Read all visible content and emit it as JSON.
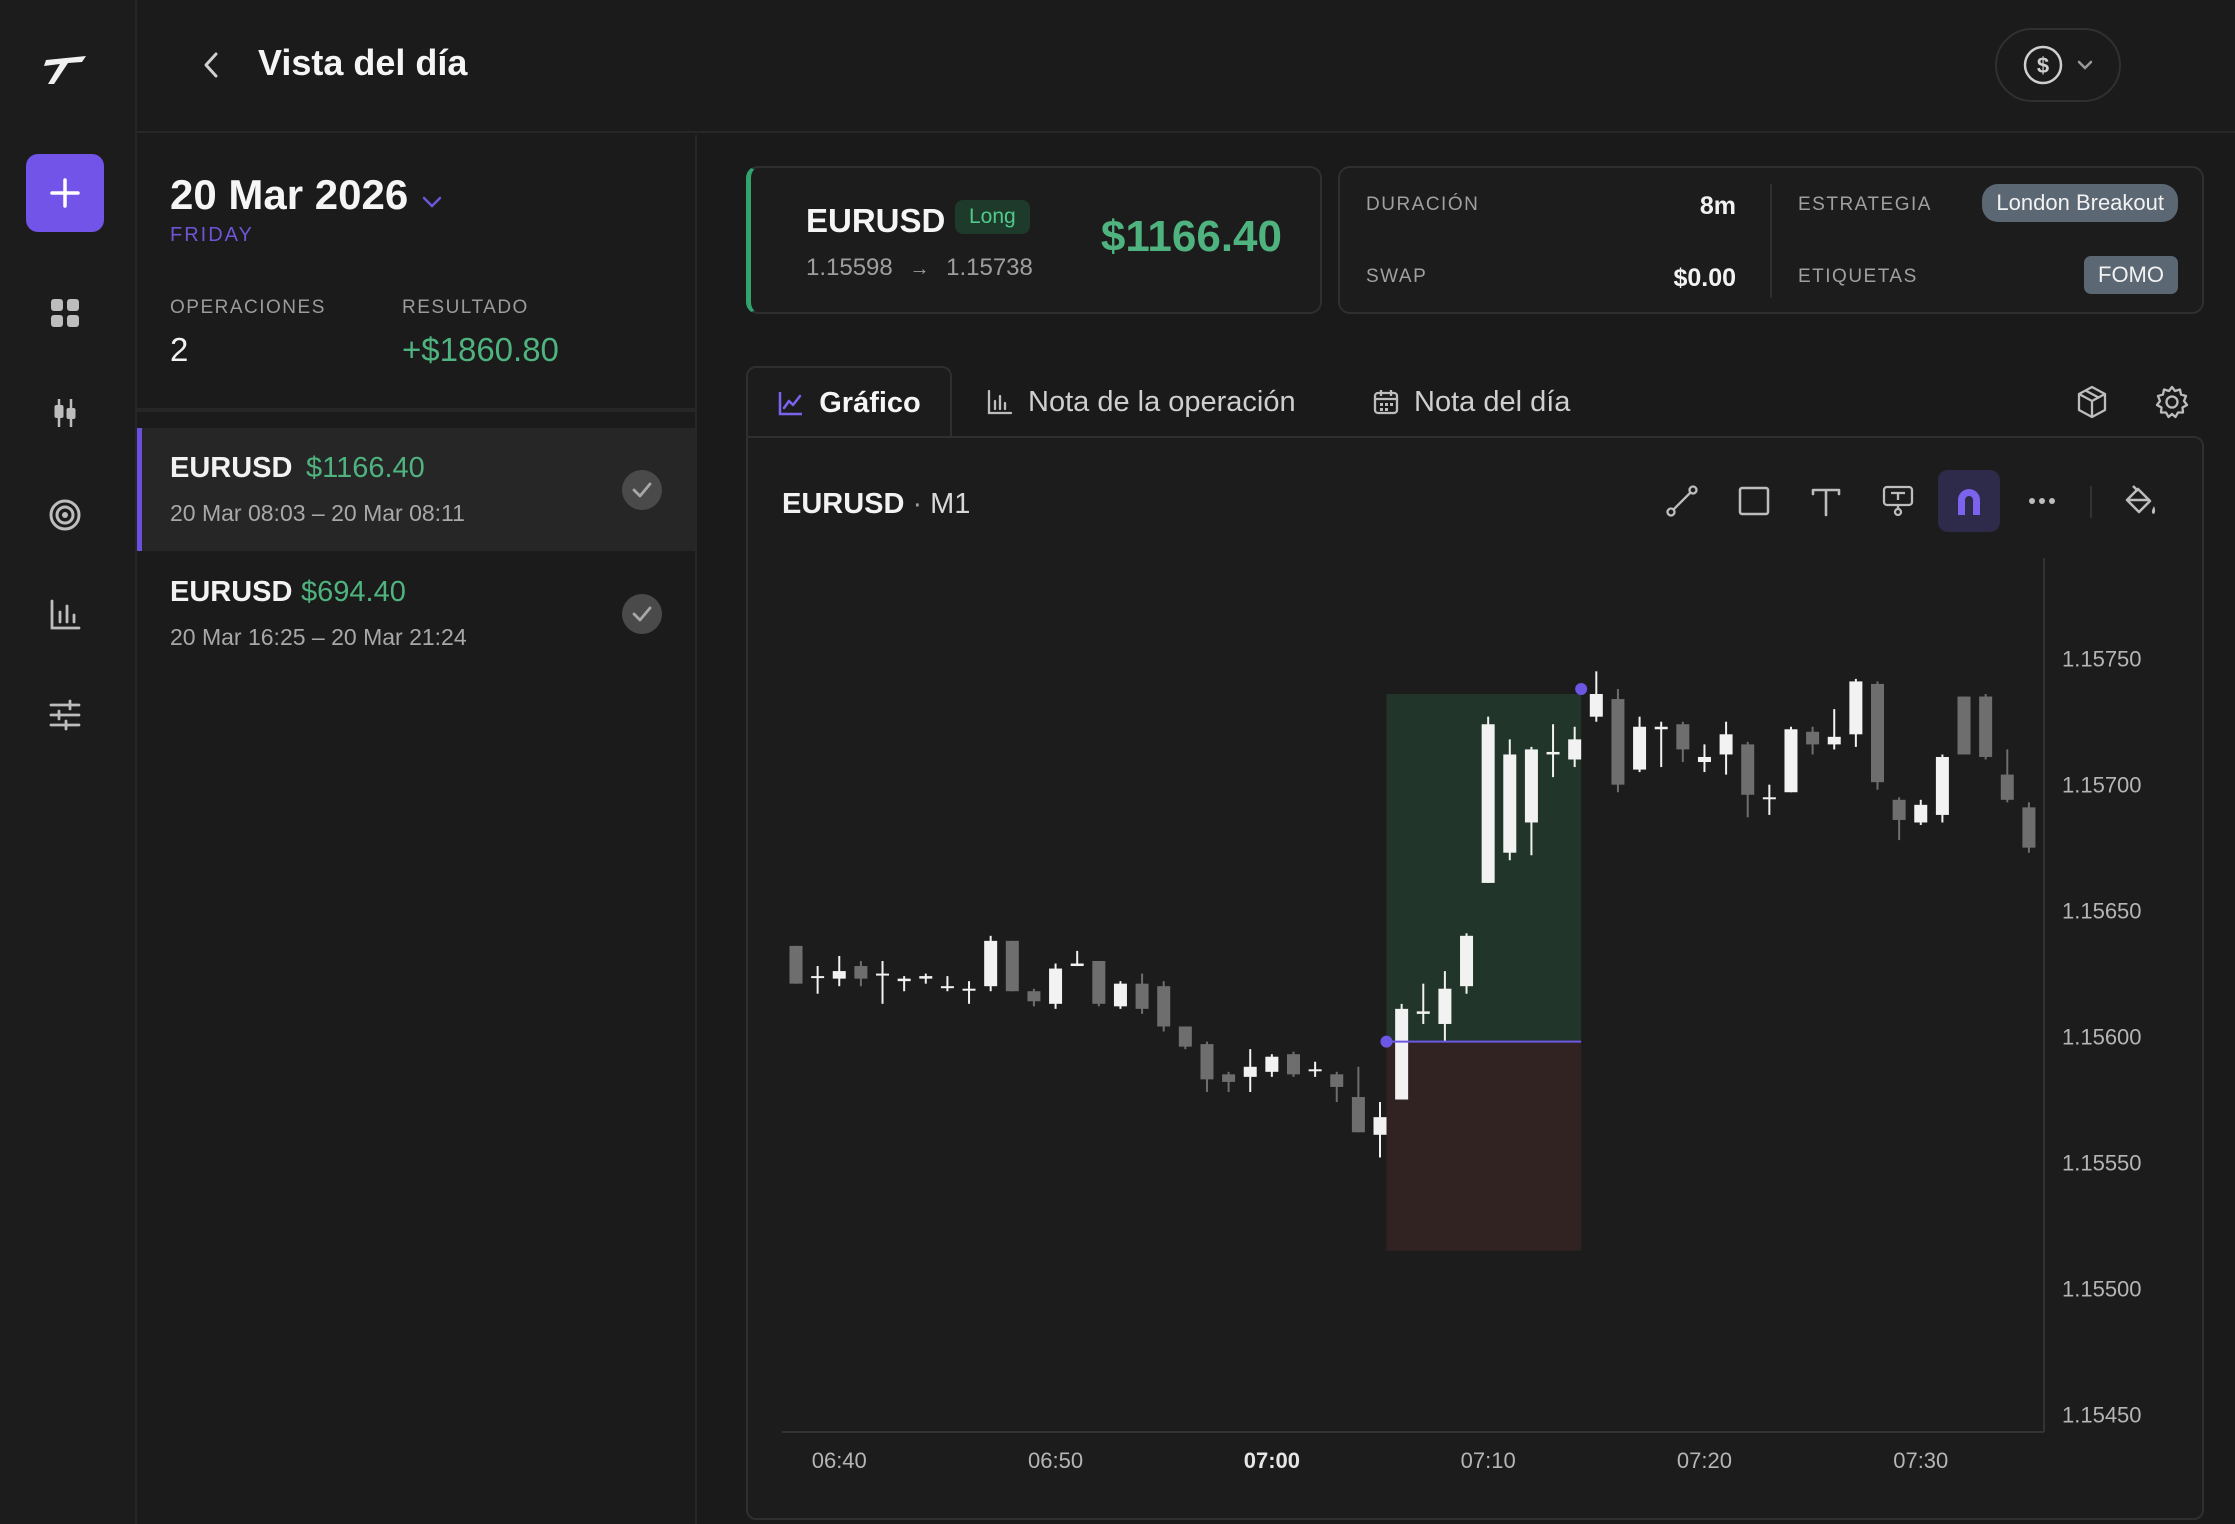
{
  "header": {
    "title": "Vista del día"
  },
  "rail": {
    "items": [
      "add-icon",
      "dashboard-icon",
      "candlestick-icon",
      "target-icon",
      "bar-chart-icon",
      "sliders-icon"
    ]
  },
  "day": {
    "date": "20 Mar 2026",
    "weekday": "FRIDAY",
    "operaciones_label": "OPERACIONES",
    "operaciones_value": "2",
    "resultado_label": "RESULTADO",
    "resultado_value": "+$1860.80"
  },
  "trades": [
    {
      "symbol": "EURUSD",
      "pnl": "$1166.40",
      "time": "20 Mar 08:03 – 20 Mar 08:11"
    },
    {
      "symbol": "EURUSD",
      "pnl": "$694.40",
      "time": "20 Mar 16:25 – 20 Mar 21:24"
    }
  ],
  "detail": {
    "symbol": "EURUSD",
    "side": "Long",
    "entry": "1.15598",
    "exit": "1.15738",
    "arrow": "→",
    "pnl": "$1166.40",
    "duracion_label": "DURACIÓN",
    "duracion_value": "8m",
    "swap_label": "SWAP",
    "swap_value": "$0.00",
    "estrategia_label": "ESTRATEGIA",
    "estrategia_value": "London Breakout",
    "etiquetas_label": "ETIQUETAS",
    "etiquetas_value": "FOMO"
  },
  "tabs": [
    {
      "label": "Gráfico",
      "icon": "line-chart-icon"
    },
    {
      "label": "Nota de la operación",
      "icon": "bar-chart-icon"
    },
    {
      "label": "Nota del día",
      "icon": "calendar-icon"
    }
  ],
  "chart": {
    "symbol": "EURUSD",
    "sep": "·",
    "timeframe": "M1"
  },
  "colors": {
    "accent": "#7254e8",
    "profit": "#4fb37f",
    "bull": "#f2f2f2",
    "bear": "#6e6e6e"
  },
  "chart_data": {
    "type": "candlestick",
    "symbol": "EURUSD",
    "timeframe": "M1",
    "y_ticks": [
      "1.15750",
      "1.15700",
      "1.15650",
      "1.15600",
      "1.15550",
      "1.15500",
      "1.15450"
    ],
    "ylim": [
      1.15443,
      1.1579
    ],
    "x_ticks": [
      {
        "label": "06:40",
        "minute": 2
      },
      {
        "label": "06:50",
        "minute": 12
      },
      {
        "label": "07:00",
        "minute": 22,
        "bold": true
      },
      {
        "label": "07:10",
        "minute": 32
      },
      {
        "label": "07:20",
        "minute": 42
      },
      {
        "label": "07:30",
        "minute": 52
      }
    ],
    "candles": [
      [
        1.15636,
        1.15621,
        1.15636,
        1.15621
      ],
      [
        1.15624,
        1.15624,
        1.15628,
        1.15617
      ],
      [
        1.15623,
        1.15626,
        1.15632,
        1.1562
      ],
      [
        1.15628,
        1.15623,
        1.1563,
        1.1562
      ],
      [
        1.15625,
        1.15625,
        1.1563,
        1.15613
      ],
      [
        1.15622,
        1.15623,
        1.15624,
        1.15618
      ],
      [
        1.15623,
        1.15624,
        1.15625,
        1.15621
      ],
      [
        1.1562,
        1.1562,
        1.15624,
        1.15618
      ],
      [
        1.15619,
        1.15619,
        1.15622,
        1.15613
      ],
      [
        1.1562,
        1.15638,
        1.1564,
        1.15618
      ],
      [
        1.15638,
        1.15618,
        1.15638,
        1.15618
      ],
      [
        1.15618,
        1.15614,
        1.15619,
        1.15612
      ],
      [
        1.15613,
        1.15627,
        1.15629,
        1.15611
      ],
      [
        1.15628,
        1.15629,
        1.15634,
        1.15628
      ],
      [
        1.1563,
        1.15613,
        1.1563,
        1.15612
      ],
      [
        1.15612,
        1.15621,
        1.15622,
        1.15611
      ],
      [
        1.15621,
        1.15611,
        1.15625,
        1.15609
      ],
      [
        1.1562,
        1.15604,
        1.15622,
        1.15602
      ],
      [
        1.15604,
        1.15596,
        1.15604,
        1.15595
      ],
      [
        1.15597,
        1.15583,
        1.15598,
        1.15578
      ],
      [
        1.15585,
        1.15582,
        1.15586,
        1.15578
      ],
      [
        1.15584,
        1.15588,
        1.15595,
        1.15578
      ],
      [
        1.15586,
        1.15592,
        1.15593,
        1.15584
      ],
      [
        1.15593,
        1.15585,
        1.15594,
        1.15584
      ],
      [
        1.15587,
        1.15587,
        1.1559,
        1.15584
      ],
      [
        1.15585,
        1.1558,
        1.15586,
        1.15574
      ],
      [
        1.15576,
        1.15562,
        1.15588,
        1.15562
      ],
      [
        1.15561,
        1.15568,
        1.15574,
        1.15552
      ],
      [
        1.15575,
        1.15611,
        1.15613,
        1.15575
      ],
      [
        1.15609,
        1.1561,
        1.15621,
        1.15605
      ],
      [
        1.15605,
        1.15619,
        1.15626,
        1.15598
      ],
      [
        1.1562,
        1.1564,
        1.15641,
        1.15617
      ],
      [
        1.15661,
        1.15724,
        1.15727,
        1.15661
      ],
      [
        1.15673,
        1.15712,
        1.15718,
        1.1567
      ],
      [
        1.15685,
        1.15714,
        1.15715,
        1.15672
      ],
      [
        1.15712,
        1.15713,
        1.15724,
        1.15703
      ],
      [
        1.1571,
        1.15718,
        1.15723,
        1.15707
      ],
      [
        1.15727,
        1.15736,
        1.15745,
        1.15725
      ],
      [
        1.15734,
        1.157,
        1.15738,
        1.15697
      ],
      [
        1.15706,
        1.15723,
        1.15727,
        1.15705
      ],
      [
        1.15722,
        1.15723,
        1.15725,
        1.15707
      ],
      [
        1.15724,
        1.15714,
        1.15725,
        1.15709
      ],
      [
        1.15709,
        1.15711,
        1.15716,
        1.15705
      ],
      [
        1.15712,
        1.1572,
        1.15725,
        1.15704
      ],
      [
        1.15716,
        1.15696,
        1.15717,
        1.15687
      ],
      [
        1.15695,
        1.15695,
        1.157,
        1.15688
      ],
      [
        1.15697,
        1.15722,
        1.15723,
        1.15697
      ],
      [
        1.15721,
        1.15716,
        1.15723,
        1.15712
      ],
      [
        1.15716,
        1.15719,
        1.1573,
        1.15714
      ],
      [
        1.1572,
        1.15741,
        1.15742,
        1.15715
      ],
      [
        1.1574,
        1.15701,
        1.15741,
        1.15698
      ],
      [
        1.15694,
        1.15686,
        1.15695,
        1.15678
      ],
      [
        1.15685,
        1.15692,
        1.15694,
        1.15684
      ],
      [
        1.15688,
        1.15711,
        1.15712,
        1.15685
      ],
      [
        1.15735,
        1.15712,
        1.15735,
        1.15712
      ],
      [
        1.15735,
        1.15711,
        1.15736,
        1.1571
      ],
      [
        1.15704,
        1.15694,
        1.15714,
        1.15693
      ],
      [
        1.15691,
        1.15675,
        1.15693,
        1.15673
      ],
      [
        1.15672,
        1.1566,
        1.15672,
        1.15651
      ],
      [
        1.15657,
        1.15672,
        1.15683,
        1.15654
      ],
      [
        1.15675,
        1.1569,
        1.15703,
        1.1567
      ],
      [
        1.15697,
        1.15699,
        1.15703,
        1.15681
      ]
    ],
    "position": {
      "side": "long",
      "entry_minute": 27.3,
      "exit_minute": 36.3,
      "entry_price": 1.15598,
      "take_profit": 1.15736,
      "stop_loss": 1.15515
    }
  }
}
